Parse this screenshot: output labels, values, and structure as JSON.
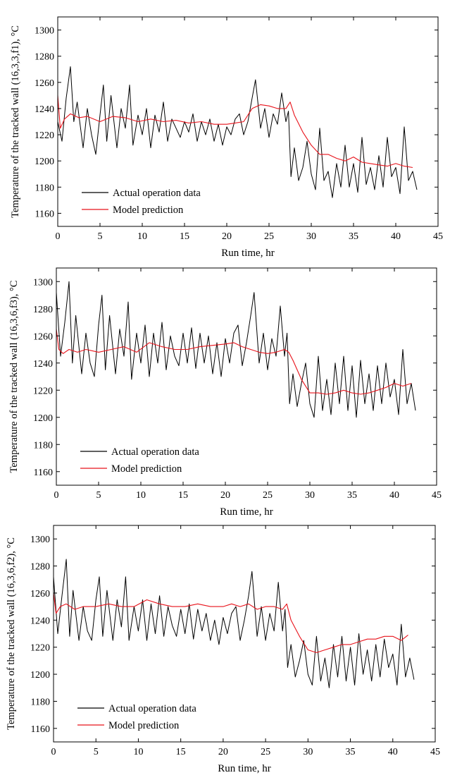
{
  "colors": {
    "actual": "#000000",
    "model": "#e8131b",
    "axis": "#000000"
  },
  "chart_data": [
    {
      "type": "line",
      "title": "",
      "xlabel": "Run time, hr",
      "ylabel": "Temperature of the tracked wall (16,3,3,f1), °C",
      "xlim": [
        0,
        45
      ],
      "ylim": [
        1150,
        1310
      ],
      "xticks": [
        0,
        5,
        10,
        15,
        20,
        25,
        30,
        35,
        40,
        45
      ],
      "yticks": [
        1160,
        1180,
        1200,
        1220,
        1240,
        1260,
        1280,
        1300
      ],
      "grid": false,
      "legend": "bottom-left",
      "series": [
        {
          "name": "Actual operation data",
          "color": "#000000",
          "x": [
            0,
            0.5,
            1,
            1.5,
            1.9,
            2.3,
            3,
            3.5,
            4,
            4.5,
            5,
            5.4,
            5.8,
            6.3,
            7,
            7.5,
            8,
            8.5,
            8.9,
            9.5,
            10,
            10.5,
            11,
            11.5,
            12,
            12.5,
            13,
            13.5,
            14,
            14.5,
            15,
            15.5,
            16,
            16.5,
            17,
            17.5,
            18,
            18.5,
            19,
            19.5,
            20,
            20.5,
            21,
            21.5,
            22,
            22.5,
            23,
            23.4,
            24,
            24.5,
            25,
            25.5,
            26,
            26.5,
            27,
            27.3,
            27.6,
            28,
            28.5,
            29,
            29.5,
            30,
            30.5,
            31,
            31.5,
            32,
            32.5,
            33,
            33.5,
            34,
            34.5,
            35,
            35.5,
            36,
            36.5,
            37,
            37.5,
            38,
            38.5,
            39,
            39.5,
            40,
            40.5,
            41,
            41.5,
            42,
            42.5
          ],
          "y": [
            1230,
            1215,
            1248,
            1272,
            1230,
            1245,
            1210,
            1240,
            1220,
            1205,
            1235,
            1258,
            1215,
            1250,
            1210,
            1240,
            1225,
            1258,
            1212,
            1235,
            1220,
            1240,
            1210,
            1235,
            1222,
            1245,
            1215,
            1232,
            1225,
            1218,
            1230,
            1222,
            1236,
            1215,
            1230,
            1220,
            1232,
            1215,
            1228,
            1212,
            1226,
            1220,
            1232,
            1236,
            1220,
            1230,
            1248,
            1262,
            1225,
            1240,
            1218,
            1236,
            1228,
            1252,
            1230,
            1238,
            1188,
            1210,
            1185,
            1195,
            1215,
            1190,
            1178,
            1225,
            1185,
            1192,
            1172,
            1198,
            1180,
            1212,
            1180,
            1198,
            1176,
            1218,
            1182,
            1195,
            1178,
            1204,
            1180,
            1218,
            1188,
            1195,
            1175,
            1226,
            1185,
            1192,
            1178
          ]
        },
        {
          "name": "Model prediction",
          "color": "#e8131b",
          "x": [
            0,
            0.3,
            0.8,
            1.5,
            2.5,
            3.5,
            5,
            6.5,
            8,
            9.5,
            11,
            12.5,
            14,
            15.5,
            17,
            18.5,
            20,
            21,
            22,
            23,
            24,
            25,
            26,
            27,
            27.5,
            28,
            29,
            30,
            31,
            32,
            33,
            34,
            35,
            36,
            37,
            38,
            39,
            40,
            41,
            42
          ],
          "y": [
            1250,
            1225,
            1232,
            1236,
            1233,
            1234,
            1230,
            1234,
            1233,
            1230,
            1232,
            1230,
            1231,
            1229,
            1230,
            1228,
            1228,
            1229,
            1230,
            1240,
            1243,
            1242,
            1240,
            1240,
            1245,
            1235,
            1222,
            1212,
            1205,
            1205,
            1202,
            1200,
            1203,
            1199,
            1198,
            1197,
            1196,
            1198,
            1196,
            1195
          ]
        }
      ]
    },
    {
      "type": "line",
      "title": "",
      "xlabel": "Run time, hr",
      "ylabel": "Temperature of the tracked wall (16,3,6,f3), °C",
      "xlim": [
        0,
        45
      ],
      "ylim": [
        1150,
        1310
      ],
      "xticks": [
        0,
        5,
        10,
        15,
        20,
        25,
        30,
        35,
        40,
        45
      ],
      "yticks": [
        1160,
        1180,
        1200,
        1220,
        1240,
        1260,
        1280,
        1300
      ],
      "grid": false,
      "legend": "bottom-left",
      "series": [
        {
          "name": "Actual operation data",
          "color": "#000000",
          "x": [
            0,
            0.5,
            1,
            1.5,
            1.9,
            2.3,
            3,
            3.5,
            4,
            4.5,
            5,
            5.4,
            5.8,
            6.3,
            7,
            7.5,
            8,
            8.5,
            8.9,
            9.5,
            10,
            10.5,
            11,
            11.5,
            12,
            12.5,
            13,
            13.5,
            14,
            14.5,
            15,
            15.5,
            16,
            16.5,
            17,
            17.5,
            18,
            18.5,
            19,
            19.5,
            20,
            20.5,
            21,
            21.5,
            22,
            22.5,
            23,
            23.4,
            24,
            24.5,
            25,
            25.5,
            26,
            26.5,
            27,
            27.3,
            27.6,
            28,
            28.5,
            29,
            29.5,
            30,
            30.5,
            31,
            31.5,
            32,
            32.5,
            33,
            33.5,
            34,
            34.5,
            35,
            35.5,
            36,
            36.5,
            37,
            37.5,
            38,
            38.5,
            39,
            39.5,
            40,
            40.5,
            41,
            41.5,
            42,
            42.5
          ],
          "y": [
            1292,
            1245,
            1270,
            1300,
            1240,
            1275,
            1232,
            1262,
            1240,
            1230,
            1268,
            1290,
            1235,
            1275,
            1232,
            1265,
            1245,
            1285,
            1228,
            1262,
            1240,
            1268,
            1230,
            1262,
            1240,
            1270,
            1235,
            1260,
            1245,
            1238,
            1262,
            1240,
            1266,
            1236,
            1262,
            1240,
            1260,
            1232,
            1255,
            1230,
            1258,
            1240,
            1262,
            1268,
            1238,
            1255,
            1275,
            1292,
            1240,
            1262,
            1235,
            1258,
            1245,
            1282,
            1245,
            1262,
            1210,
            1232,
            1208,
            1225,
            1240,
            1210,
            1200,
            1245,
            1205,
            1228,
            1202,
            1240,
            1210,
            1245,
            1205,
            1238,
            1200,
            1242,
            1210,
            1232,
            1205,
            1238,
            1210,
            1240,
            1215,
            1228,
            1202,
            1250,
            1210,
            1225,
            1205
          ]
        },
        {
          "name": "Model prediction",
          "color": "#e8131b",
          "x": [
            0,
            0.3,
            0.8,
            1.5,
            2.5,
            3.5,
            5,
            6.5,
            8,
            9.5,
            11,
            12.5,
            14,
            15.5,
            17,
            18.5,
            20,
            21,
            22,
            23,
            24,
            25,
            26,
            27,
            27.5,
            28,
            29,
            30,
            31,
            32,
            33,
            34,
            35,
            36,
            37,
            38,
            39,
            40,
            41,
            42
          ],
          "y": [
            1265,
            1250,
            1247,
            1250,
            1248,
            1250,
            1248,
            1250,
            1252,
            1248,
            1255,
            1252,
            1250,
            1250,
            1252,
            1253,
            1254,
            1255,
            1252,
            1250,
            1248,
            1247,
            1248,
            1250,
            1248,
            1242,
            1228,
            1218,
            1218,
            1217,
            1218,
            1220,
            1218,
            1217,
            1218,
            1220,
            1222,
            1225,
            1223,
            1225
          ]
        }
      ]
    },
    {
      "type": "line",
      "title": "",
      "xlabel": "Run time, hr",
      "ylabel": "Temperature of the tracked wall (16,3,6,f2), °C",
      "xlim": [
        0,
        45
      ],
      "ylim": [
        1150,
        1310
      ],
      "xticks": [
        0,
        5,
        10,
        15,
        20,
        25,
        30,
        35,
        40,
        45
      ],
      "yticks": [
        1160,
        1180,
        1200,
        1220,
        1240,
        1260,
        1280,
        1300
      ],
      "grid": false,
      "legend": "bottom-left",
      "series": [
        {
          "name": "Actual operation data",
          "color": "#000000",
          "x": [
            0,
            0.5,
            1,
            1.5,
            1.9,
            2.3,
            3,
            3.5,
            4,
            4.5,
            5,
            5.4,
            5.8,
            6.3,
            7,
            7.5,
            8,
            8.5,
            8.9,
            9.5,
            10,
            10.5,
            11,
            11.5,
            12,
            12.5,
            13,
            13.5,
            14,
            14.5,
            15,
            15.5,
            16,
            16.5,
            17,
            17.5,
            18,
            18.5,
            19,
            19.5,
            20,
            20.5,
            21,
            21.5,
            22,
            22.5,
            23,
            23.4,
            24,
            24.5,
            25,
            25.5,
            26,
            26.5,
            27,
            27.3,
            27.6,
            28,
            28.5,
            29,
            29.5,
            30,
            30.5,
            31,
            31.5,
            32,
            32.5,
            33,
            33.5,
            34,
            34.5,
            35,
            35.5,
            36,
            36.5,
            37,
            37.5,
            38,
            38.5,
            39,
            39.5,
            40,
            40.5,
            41,
            41.5,
            42,
            42.5
          ],
          "y": [
            1272,
            1230,
            1258,
            1285,
            1228,
            1262,
            1225,
            1250,
            1232,
            1225,
            1255,
            1272,
            1228,
            1262,
            1225,
            1255,
            1235,
            1272,
            1225,
            1250,
            1232,
            1255,
            1225,
            1252,
            1230,
            1258,
            1228,
            1250,
            1236,
            1228,
            1248,
            1230,
            1252,
            1226,
            1248,
            1232,
            1245,
            1225,
            1240,
            1222,
            1242,
            1230,
            1245,
            1250,
            1225,
            1240,
            1258,
            1276,
            1228,
            1250,
            1225,
            1245,
            1232,
            1268,
            1232,
            1248,
            1205,
            1222,
            1198,
            1210,
            1225,
            1200,
            1192,
            1228,
            1195,
            1212,
            1190,
            1222,
            1198,
            1228,
            1195,
            1220,
            1192,
            1230,
            1200,
            1218,
            1195,
            1222,
            1198,
            1226,
            1205,
            1215,
            1192,
            1237,
            1198,
            1212,
            1196
          ]
        },
        {
          "name": "Model prediction",
          "color": "#e8131b",
          "x": [
            0,
            0.3,
            0.8,
            1.5,
            2.5,
            3.5,
            5,
            6.5,
            8,
            9.5,
            11,
            12.5,
            14,
            15.5,
            17,
            18.5,
            20,
            21,
            22,
            23,
            24,
            25,
            26,
            27,
            27.5,
            28,
            29,
            30,
            31,
            32,
            33,
            34,
            35,
            36,
            37,
            38,
            39,
            40,
            41,
            41.8
          ],
          "y": [
            1260,
            1245,
            1250,
            1252,
            1248,
            1250,
            1250,
            1252,
            1250,
            1250,
            1255,
            1252,
            1250,
            1250,
            1252,
            1250,
            1250,
            1252,
            1250,
            1252,
            1248,
            1250,
            1250,
            1248,
            1252,
            1240,
            1228,
            1218,
            1216,
            1218,
            1220,
            1222,
            1222,
            1224,
            1226,
            1226,
            1228,
            1228,
            1225,
            1229
          ]
        }
      ]
    }
  ]
}
